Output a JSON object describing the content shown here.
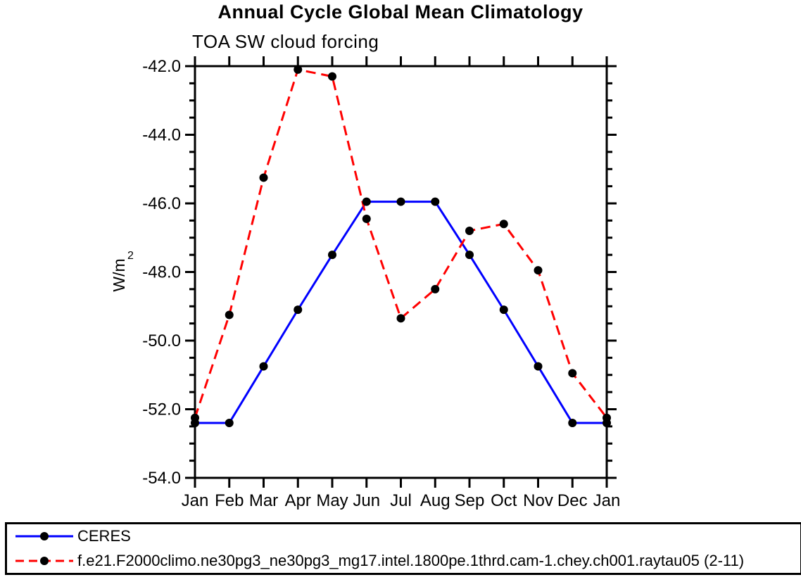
{
  "header": {
    "title": "Annual Cycle Global Mean Climatology",
    "subtitle": "TOA SW cloud forcing"
  },
  "chart_data": {
    "type": "line",
    "title": "Annual Cycle Global Mean Climatology",
    "subtitle": "TOA SW cloud forcing",
    "xlabel": "",
    "ylabel": "W/m²",
    "x_categories": [
      "Jan",
      "Feb",
      "Mar",
      "Apr",
      "May",
      "Jun",
      "Jul",
      "Aug",
      "Sep",
      "Oct",
      "Nov",
      "Dec",
      "Jan"
    ],
    "ylim": [
      -54.0,
      -42.0
    ],
    "ytick_values": [
      -42.0,
      -44.0,
      -46.0,
      -48.0,
      -50.0,
      -52.0,
      -54.0
    ],
    "ytick_labels": [
      "-42.0",
      "-44.0",
      "-46.0",
      "-48.0",
      "-50.0",
      "-52.0",
      "-54.0"
    ],
    "ytick_minor_step": 0.5,
    "grid": false,
    "legend_position": "bottom-box",
    "axis_color": "#000000",
    "marker_color": "#000000",
    "series": [
      {
        "name": "CERES",
        "color": "#0000ff",
        "line_style": "solid",
        "marker": "filled-circle",
        "values": [
          -52.4,
          -52.4,
          -50.75,
          -49.1,
          -47.5,
          -45.95,
          -45.95,
          -45.95,
          -47.5,
          -49.1,
          -50.75,
          -52.4,
          -52.4
        ]
      },
      {
        "name": "f.e21.F2000climo.ne30pg3_ne30pg3_mg17.intel.1800pe.1thrd.cam-1.chey.ch001.raytau05 (2-11)",
        "color": "#ff0000",
        "line_style": "dashed",
        "marker": "filled-circle",
        "values": [
          -52.25,
          -49.25,
          -45.25,
          -42.1,
          -42.3,
          -46.45,
          -49.35,
          -48.5,
          -46.8,
          -46.6,
          -47.95,
          -50.95,
          -52.25
        ]
      }
    ]
  }
}
